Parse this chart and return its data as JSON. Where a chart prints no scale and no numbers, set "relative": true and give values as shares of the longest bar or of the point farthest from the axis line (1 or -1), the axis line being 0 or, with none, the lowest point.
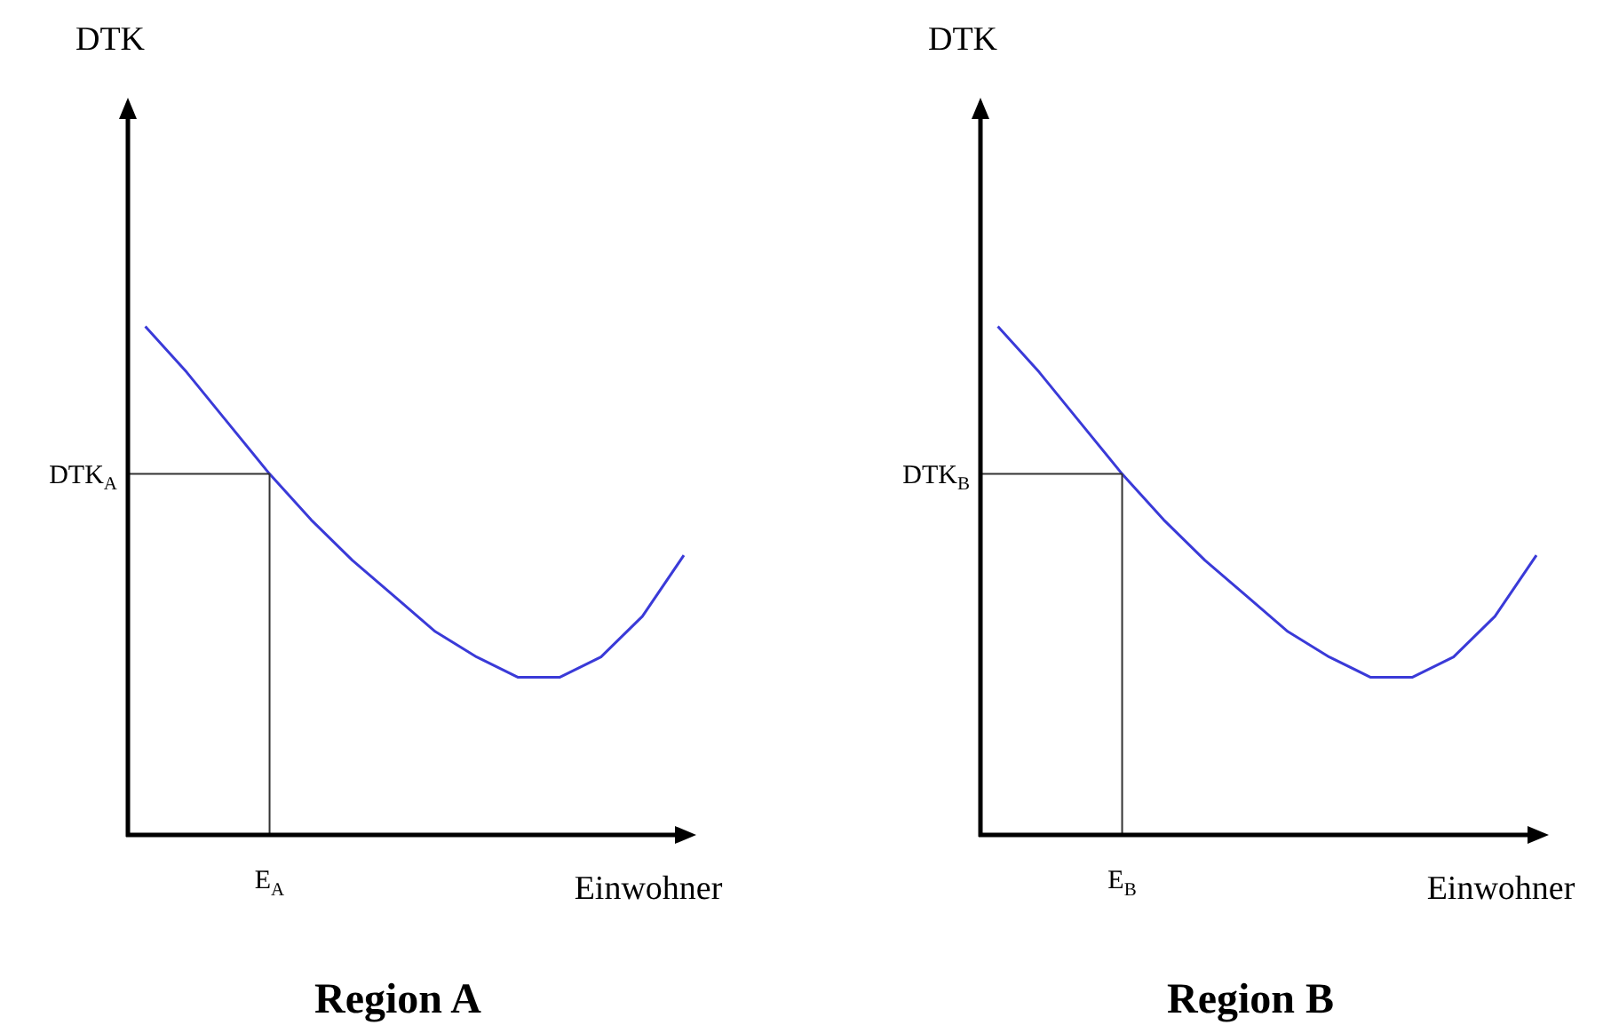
{
  "chart_data": [
    {
      "type": "line",
      "title": "Region A",
      "xlabel": "Einwohner",
      "ylabel": "DTK",
      "relative": true,
      "marker": "none",
      "line_style": "solid",
      "legend": false,
      "categories": [
        null,
        null,
        null,
        null,
        null,
        null,
        null,
        null,
        null,
        null,
        null,
        null,
        null,
        null
      ],
      "series": [
        {
          "color": "#3a3ad8",
          "values": [
            1.0,
            0.91,
            0.81,
            0.71,
            0.62,
            0.54,
            0.47,
            0.4,
            0.35,
            0.31,
            0.31,
            0.35,
            0.43,
            0.55
          ]
        }
      ],
      "annotations": [
        "E$_{A}$"
      ],
      "ref_lines": [
        {
          "axis": "y",
          "value": 0.71,
          "label": "DTK$_{A}$",
          "color": "#333333"
        }
      ]
    },
    {
      "type": "line",
      "title": "Region B",
      "xlabel": "Einwohner",
      "ylabel": "DTK",
      "relative": true,
      "marker": "none",
      "line_style": "solid",
      "legend": false,
      "categories": [
        null,
        null,
        null,
        null,
        null,
        null,
        null,
        null,
        null,
        null,
        null,
        null,
        null,
        null
      ],
      "series": [
        {
          "color": "#3a3ad8",
          "values": [
            1.0,
            0.91,
            0.81,
            0.71,
            0.62,
            0.54,
            0.47,
            0.4,
            0.35,
            0.31,
            0.31,
            0.35,
            0.43,
            0.55
          ]
        }
      ],
      "annotations": [
        "E$_{B}$"
      ],
      "ref_lines": [
        {
          "axis": "y",
          "value": 0.71,
          "label": "DTK$_{B}$",
          "color": "#333333"
        }
      ]
    }
  ]
}
